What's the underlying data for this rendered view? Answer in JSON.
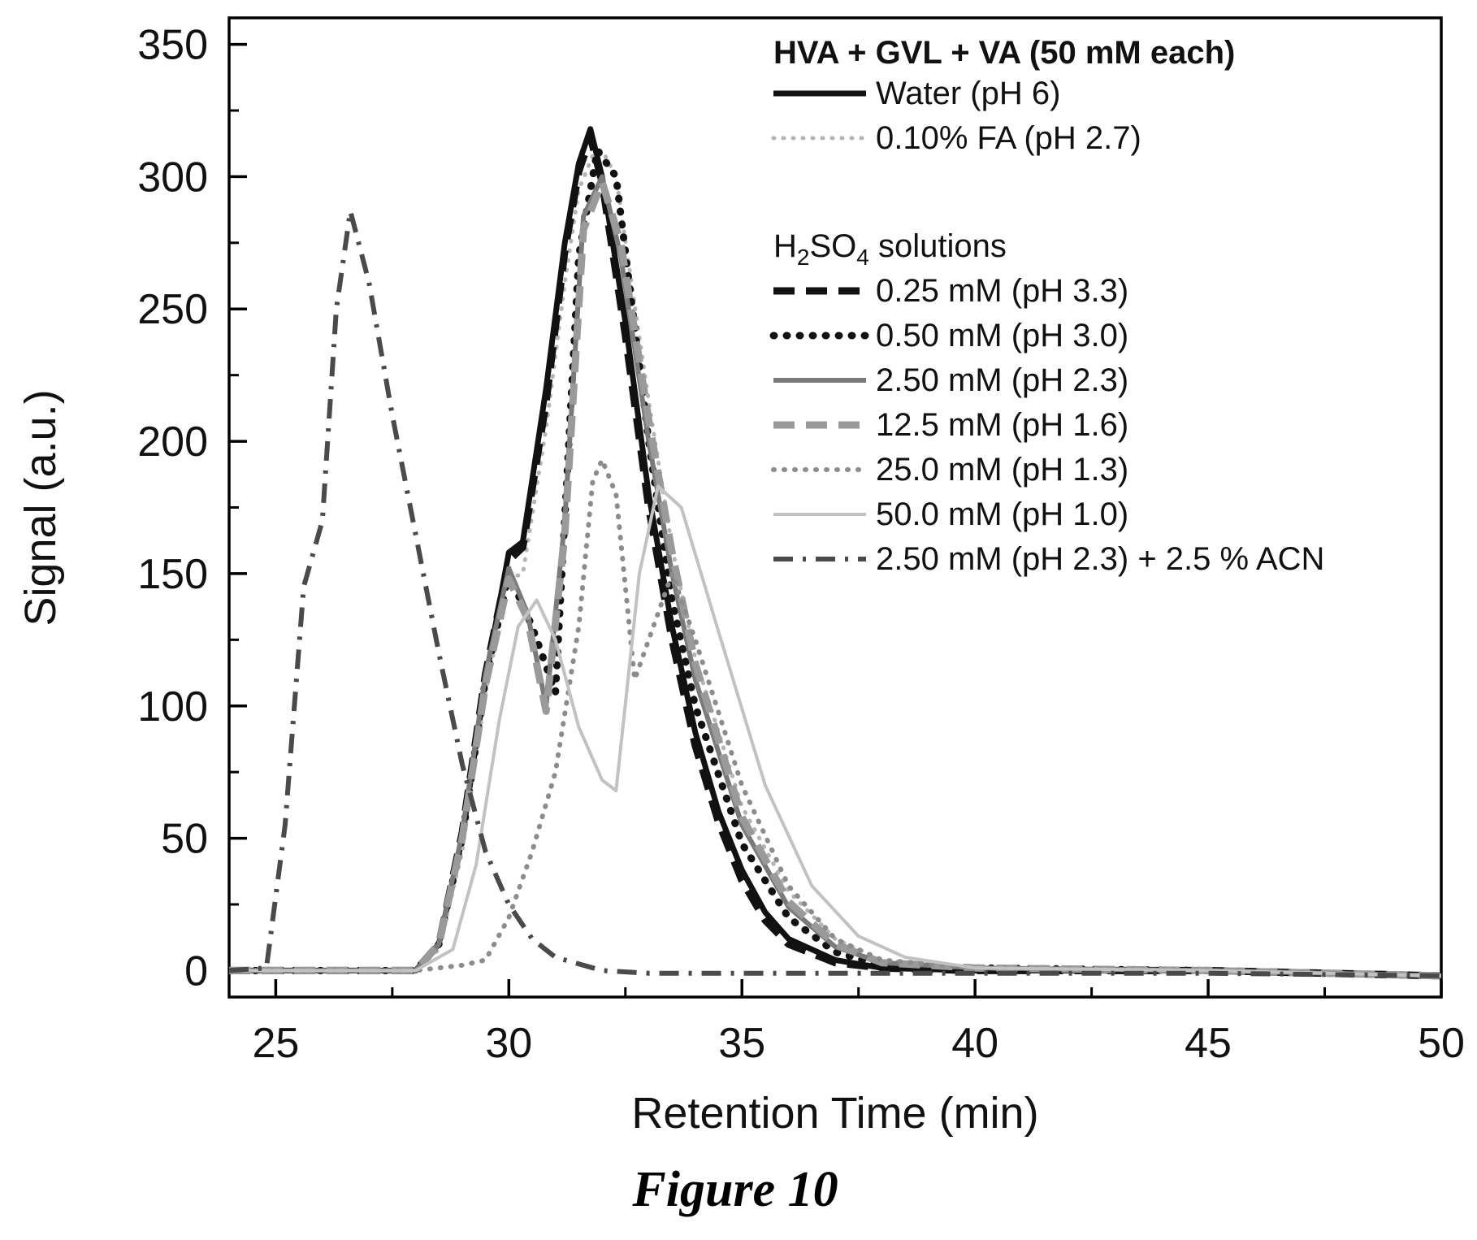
{
  "figure_caption": "Figure 10",
  "chart_data": {
    "type": "line",
    "title": "",
    "xlabel": "Retention Time (min)",
    "ylabel": "Signal (a.u.)",
    "xlim": [
      24,
      50
    ],
    "ylim": [
      -10,
      360
    ],
    "xticks": [
      25,
      30,
      35,
      40,
      45,
      50
    ],
    "yticks": [
      0,
      50,
      100,
      150,
      200,
      250,
      300,
      350
    ],
    "grid": false,
    "legend_placement": "top-right",
    "legend_title": "HVA + GVL + VA (50 mM each)",
    "legend_subheading": {
      "prefix": "H",
      "sub1": "2",
      "mid": "SO",
      "sub2": "4",
      "suffix": " solutions"
    },
    "series": [
      {
        "name": "Water (pH 6)",
        "group": 1,
        "style": {
          "color": "#111111",
          "width": 7,
          "dash": ""
        },
        "x": [
          24,
          28,
          28.5,
          29,
          29.5,
          30,
          30.3,
          30.8,
          31.2,
          31.5,
          31.75,
          32,
          32.5,
          33,
          33.5,
          34,
          34.5,
          35,
          35.5,
          36,
          37,
          38,
          40,
          45,
          50
        ],
        "y": [
          0,
          0,
          10,
          50,
          110,
          158,
          162,
          220,
          275,
          305,
          318,
          300,
          245,
          180,
          130,
          90,
          60,
          38,
          22,
          12,
          4,
          1,
          0,
          0,
          -2
        ]
      },
      {
        "name": "0.10% FA (pH 2.7)",
        "group": 1,
        "style": {
          "color": "#b4b4b4",
          "width": 5,
          "dash": "1 11",
          "cap": "round"
        },
        "x": [
          24,
          28,
          28.5,
          29,
          29.5,
          30,
          30.3,
          30.8,
          31.2,
          31.5,
          31.8,
          32,
          32.3,
          33,
          33.5,
          34,
          35,
          36,
          37,
          38,
          40,
          45,
          50
        ],
        "y": [
          0,
          0,
          8,
          45,
          105,
          148,
          150,
          205,
          260,
          295,
          308,
          310,
          300,
          215,
          160,
          118,
          62,
          30,
          12,
          4,
          1,
          0,
          -2
        ]
      },
      {
        "name": "0.25 mM (pH 3.3)",
        "group": 2,
        "style": {
          "color": "#111111",
          "width": 9,
          "dash": "26 14"
        },
        "x": [
          24,
          28,
          28.5,
          29,
          29.5,
          30,
          30.3,
          30.8,
          31.2,
          31.5,
          31.75,
          32,
          32.5,
          33,
          33.5,
          34,
          34.5,
          35,
          35.5,
          36,
          37,
          38,
          40,
          45,
          50
        ],
        "y": [
          0,
          0,
          10,
          52,
          112,
          155,
          160,
          215,
          272,
          302,
          315,
          298,
          240,
          175,
          125,
          85,
          56,
          34,
          19,
          10,
          3,
          1,
          0,
          0,
          -2
        ]
      },
      {
        "name": "0.50 mM (pH 3.0)",
        "group": 2,
        "style": {
          "color": "#111111",
          "width": 9,
          "dash": "1 15",
          "cap": "round"
        },
        "x": [
          24,
          28,
          28.5,
          29,
          29.5,
          30,
          30.5,
          31,
          31.5,
          31.9,
          32.3,
          33,
          33.5,
          34,
          35,
          36,
          37,
          38,
          40,
          45,
          50
        ],
        "y": [
          0,
          0,
          10,
          50,
          110,
          150,
          130,
          105,
          270,
          310,
          300,
          200,
          140,
          100,
          48,
          20,
          7,
          2,
          1,
          0,
          -2
        ]
      },
      {
        "name": "2.50 mM (pH 2.3)",
        "group": 2,
        "style": {
          "color": "#7a7a7a",
          "width": 6,
          "dash": ""
        },
        "x": [
          24,
          28,
          28.5,
          29,
          29.5,
          30,
          30.4,
          30.8,
          31.2,
          31.6,
          32,
          32.4,
          33,
          33.5,
          34,
          35,
          36,
          37,
          38,
          40,
          45,
          50
        ],
        "y": [
          0,
          0,
          10,
          52,
          112,
          152,
          135,
          100,
          170,
          285,
          300,
          270,
          200,
          150,
          110,
          55,
          24,
          9,
          3,
          1,
          0,
          -2
        ]
      },
      {
        "name": "12.5 mM (pH 1.6)",
        "group": 2,
        "style": {
          "color": "#9a9a9a",
          "width": 9,
          "dash": "26 14"
        },
        "x": [
          24,
          28,
          28.5,
          29,
          29.5,
          30,
          30.4,
          30.8,
          31.2,
          31.6,
          32,
          32.4,
          33,
          33.5,
          34,
          35,
          36,
          37,
          38,
          40,
          45,
          50
        ],
        "y": [
          0,
          0,
          10,
          50,
          108,
          148,
          133,
          98,
          165,
          280,
          298,
          275,
          208,
          158,
          116,
          58,
          26,
          10,
          3,
          1,
          0,
          -2
        ]
      },
      {
        "name": "25.0 mM (pH 1.3)",
        "group": 2,
        "style": {
          "color": "#8c8c8c",
          "width": 6,
          "dash": "1 12",
          "cap": "round"
        },
        "x": [
          24,
          28,
          29,
          29.5,
          30,
          30.5,
          31,
          31.5,
          31.8,
          32,
          32.3,
          32.7,
          33,
          33.5,
          34,
          35,
          36,
          37,
          38,
          40,
          45,
          50
        ],
        "y": [
          0,
          0,
          2,
          4,
          20,
          45,
          75,
          130,
          185,
          193,
          180,
          110,
          125,
          150,
          125,
          70,
          32,
          12,
          4,
          1,
          0,
          -2
        ]
      },
      {
        "name": "50.0 mM (pH 1.0)",
        "group": 2,
        "style": {
          "color": "#c2c2c2",
          "width": 4,
          "dash": ""
        },
        "x": [
          24,
          28,
          28.8,
          29.3,
          29.8,
          30.2,
          30.6,
          31,
          31.5,
          32,
          32.3,
          32.8,
          33.2,
          33.7,
          34.5,
          35.5,
          36.5,
          37.5,
          38.5,
          40,
          45,
          50
        ],
        "y": [
          0,
          0,
          8,
          40,
          95,
          130,
          140,
          125,
          92,
          72,
          68,
          150,
          183,
          175,
          128,
          70,
          32,
          13,
          5,
          1,
          0,
          -2
        ]
      },
      {
        "name": "2.50 mM (pH 2.3) + 2.5 % ACN",
        "group": 2,
        "style": {
          "color": "#4a4a4a",
          "width": 6,
          "dash": "24 12 4 12"
        },
        "x": [
          24,
          24.8,
          25.2,
          25.6,
          26,
          26.3,
          26.6,
          27,
          27.5,
          28,
          28.5,
          29,
          29.5,
          30,
          30.5,
          31,
          32,
          33,
          35,
          40,
          45,
          50
        ],
        "y": [
          0,
          1,
          55,
          145,
          170,
          250,
          287,
          260,
          210,
          165,
          120,
          78,
          45,
          25,
          12,
          5,
          0,
          -1,
          -1,
          -1,
          -1,
          -2
        ]
      }
    ]
  }
}
